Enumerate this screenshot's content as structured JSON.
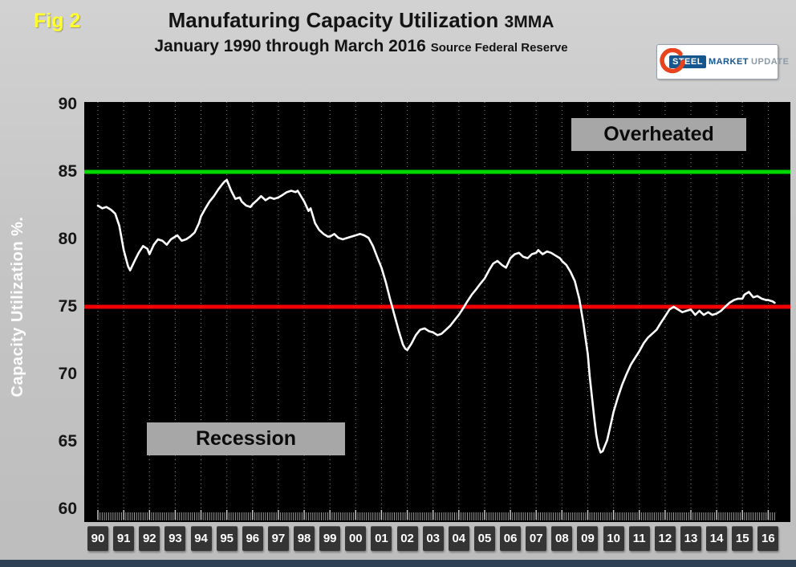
{
  "fig_label": "Fig 2",
  "title": {
    "line1_main": "Manufaturing Capacity Utilization",
    "line1_suffix": "3MMA",
    "line2_main": "January 1990 through March 2016",
    "line2_suffix": "Source Federal Reserve"
  },
  "logo": {
    "steel": "STEEL",
    "market": "MARKET",
    "update": "UPDATE"
  },
  "annotations": {
    "overheated": "Overheated",
    "recession": "Recession"
  },
  "colors": {
    "figure_label": "#ffff2e",
    "plot_background": "#000000",
    "series_line": "#ffffff",
    "overheated_line": "#00d900",
    "recession_line": "#f00000",
    "annotation_box": "#a7a7a7",
    "slide_background": "#c6c6c6",
    "logo_blue": "#15568e",
    "logo_red": "#e8431c"
  },
  "chart_data": {
    "type": "line",
    "title": "Manufaturing Capacity Utilization 3MMA",
    "subtitle": "January 1990 through March 2016 Source Federal Reserve",
    "xlabel": "",
    "ylabel": "Capacity Utilization %.",
    "ylim": [
      60,
      90
    ],
    "xlim": [
      1989.47,
      2016.86
    ],
    "y_ticks": [
      90,
      85,
      80,
      75,
      70,
      65,
      60
    ],
    "x_tick_years": [
      1990,
      1991,
      1992,
      1993,
      1994,
      1995,
      1996,
      1997,
      1998,
      1999,
      2000,
      2001,
      2002,
      2003,
      2004,
      2005,
      2006,
      2007,
      2008,
      2009,
      2010,
      2011,
      2012,
      2013,
      2014,
      2015,
      2016
    ],
    "x_tick_labels": [
      "90",
      "91",
      "92",
      "93",
      "94",
      "95",
      "96",
      "97",
      "98",
      "99",
      "00",
      "01",
      "02",
      "03",
      "04",
      "05",
      "06",
      "07",
      "08",
      "09",
      "10",
      "11",
      "12",
      "13",
      "14",
      "15",
      "16"
    ],
    "x_minor_tick_range": [
      1990,
      2016.33
    ],
    "x_minor_tick_interval_years": 0.08333,
    "grid": "vertical-dotted-per-year",
    "legend": "none",
    "reference_lines": [
      {
        "label": "Overheated",
        "y": 85,
        "color": "#00d900"
      },
      {
        "label": "Recession",
        "y": 75,
        "color": "#f00000"
      }
    ],
    "series": [
      {
        "name": "Manufacturing Capacity Utilization 3MMA",
        "color": "#ffffff",
        "x": [
          1990,
          1990.17,
          1990.33,
          1990.5,
          1990.67,
          1990.83,
          1991,
          1991.17,
          1991.25,
          1991.42,
          1991.58,
          1991.75,
          1991.92,
          1992,
          1992.17,
          1992.33,
          1992.5,
          1992.67,
          1992.83,
          1993,
          1993.08,
          1993.25,
          1993.42,
          1993.58,
          1993.75,
          1993.92,
          1994,
          1994.17,
          1994.33,
          1994.5,
          1994.67,
          1994.83,
          1994.92,
          1995,
          1995.17,
          1995.33,
          1995.5,
          1995.58,
          1995.75,
          1995.92,
          1996,
          1996.17,
          1996.33,
          1996.5,
          1996.67,
          1996.83,
          1997,
          1997.17,
          1997.33,
          1997.5,
          1997.67,
          1997.75,
          1998,
          1998.17,
          1998.25,
          1998.42,
          1998.58,
          1998.75,
          1998.92,
          1999,
          1999.17,
          1999.33,
          1999.5,
          1999.67,
          1999.83,
          2000,
          2000.17,
          2000.33,
          2000.5,
          2000.67,
          2000.83,
          2001,
          2001.17,
          2001.33,
          2001.5,
          2001.67,
          2001.83,
          2001.92,
          2002,
          2002.17,
          2002.33,
          2002.5,
          2002.67,
          2002.83,
          2003,
          2003.17,
          2003.33,
          2003.5,
          2003.67,
          2003.83,
          2004,
          2004.17,
          2004.33,
          2004.5,
          2004.67,
          2004.83,
          2005,
          2005.17,
          2005.33,
          2005.5,
          2005.67,
          2005.83,
          2006,
          2006.17,
          2006.33,
          2006.5,
          2006.67,
          2006.83,
          2007,
          2007.08,
          2007.25,
          2007.42,
          2007.58,
          2007.75,
          2007.92,
          2008,
          2008.17,
          2008.33,
          2008.5,
          2008.67,
          2008.83,
          2009,
          2009.08,
          2009.25,
          2009.33,
          2009.42,
          2009.5,
          2009.58,
          2009.75,
          2009.92,
          2010,
          2010.17,
          2010.33,
          2010.5,
          2010.67,
          2010.83,
          2011,
          2011.17,
          2011.33,
          2011.5,
          2011.67,
          2011.83,
          2012,
          2012.17,
          2012.33,
          2012.5,
          2012.67,
          2012.83,
          2013,
          2013.17,
          2013.33,
          2013.5,
          2013.67,
          2013.83,
          2014,
          2014.17,
          2014.33,
          2014.5,
          2014.67,
          2014.83,
          2015,
          2015.08,
          2015.25,
          2015.42,
          2015.58,
          2015.75,
          2015.92,
          2016,
          2016.17,
          2016.25
        ],
        "y": [
          82.5,
          82.3,
          82.4,
          82.2,
          81.9,
          81.0,
          79.2,
          78.0,
          77.7,
          78.4,
          79.0,
          79.5,
          79.3,
          78.9,
          79.6,
          80.0,
          79.9,
          79.6,
          80.0,
          80.2,
          80.3,
          79.9,
          80.0,
          80.2,
          80.5,
          81.2,
          81.7,
          82.3,
          82.8,
          83.2,
          83.7,
          84.1,
          84.3,
          84.4,
          83.6,
          83.0,
          83.1,
          82.8,
          82.5,
          82.4,
          82.6,
          82.9,
          83.2,
          82.9,
          83.1,
          83.0,
          83.1,
          83.3,
          83.5,
          83.6,
          83.5,
          83.6,
          82.8,
          82.1,
          82.3,
          81.2,
          80.7,
          80.4,
          80.2,
          80.2,
          80.4,
          80.1,
          80.0,
          80.1,
          80.2,
          80.3,
          80.4,
          80.3,
          80.1,
          79.5,
          78.7,
          77.9,
          76.8,
          75.6,
          74.4,
          73.2,
          72.2,
          71.9,
          71.8,
          72.3,
          72.9,
          73.3,
          73.4,
          73.2,
          73.1,
          72.9,
          73.0,
          73.3,
          73.6,
          74.0,
          74.4,
          74.9,
          75.4,
          75.9,
          76.3,
          76.7,
          77.1,
          77.7,
          78.2,
          78.4,
          78.1,
          77.9,
          78.6,
          78.9,
          79.0,
          78.7,
          78.6,
          78.9,
          79.0,
          79.2,
          78.9,
          79.1,
          79.0,
          78.8,
          78.6,
          78.4,
          78.1,
          77.6,
          76.9,
          75.6,
          73.8,
          71.5,
          69.8,
          66.8,
          65.5,
          64.6,
          64.2,
          64.3,
          65.1,
          66.5,
          67.2,
          68.3,
          69.2,
          70.0,
          70.7,
          71.2,
          71.7,
          72.3,
          72.7,
          73.0,
          73.3,
          73.8,
          74.3,
          74.8,
          75.0,
          74.8,
          74.6,
          74.7,
          74.8,
          74.4,
          74.7,
          74.4,
          74.6,
          74.4,
          74.5,
          74.7,
          75.0,
          75.3,
          75.5,
          75.6,
          75.6,
          75.9,
          76.1,
          75.7,
          75.8,
          75.6,
          75.5,
          75.5,
          75.4,
          75.3
        ]
      }
    ]
  }
}
